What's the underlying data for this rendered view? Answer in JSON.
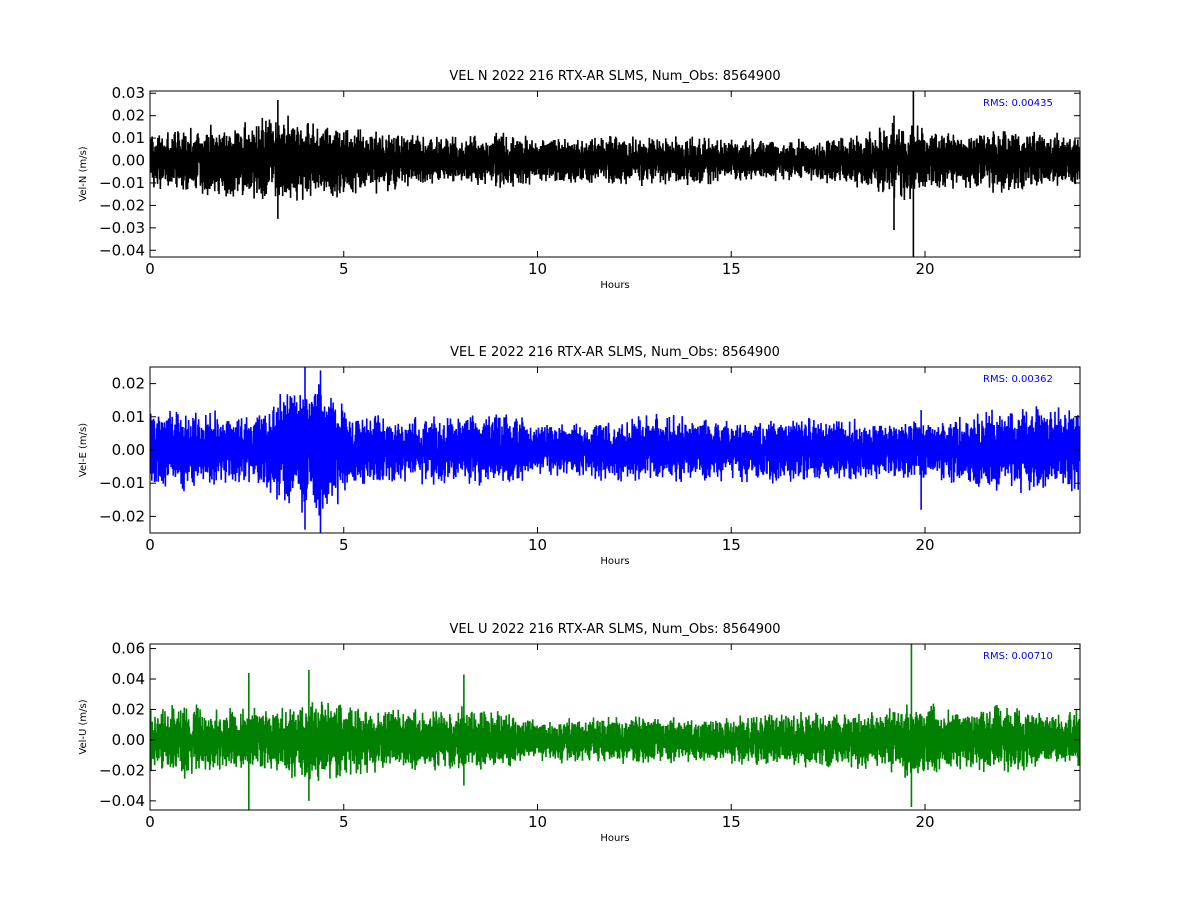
{
  "chart_data": [
    {
      "type": "line",
      "title": "VEL N 2022 216 RTX-AR  SLMS, Num_Obs: 8564900",
      "xlabel": "Hours",
      "ylabel": "Vel-N (m/s)",
      "xlim": [
        0,
        24
      ],
      "ylim": [
        -0.043,
        0.031
      ],
      "xticks": [
        0,
        5,
        10,
        15,
        20
      ],
      "xtick_labels": [
        "0",
        "5",
        "10",
        "15",
        "20"
      ],
      "yticks": [
        -0.04,
        -0.03,
        -0.02,
        -0.01,
        0.0,
        0.01,
        0.02,
        0.03
      ],
      "ytick_labels": [
        "−0.04",
        "−0.03",
        "−0.02",
        "−0.01",
        "0.00",
        "0.01",
        "0.02",
        "0.03"
      ],
      "annotation": "RMS:  0.00435",
      "annotation_color": "#0000ff",
      "grid": false,
      "series": [
        {
          "color": "#000000",
          "rms": 0.00435,
          "envelope": [
            {
              "x": 0,
              "amp": 0.013
            },
            {
              "x": 1,
              "amp": 0.016
            },
            {
              "x": 2,
              "amp": 0.018
            },
            {
              "x": 3,
              "amp": 0.02
            },
            {
              "x": 3.5,
              "amp": 0.021
            },
            {
              "x": 4,
              "amp": 0.019
            },
            {
              "x": 5,
              "amp": 0.017
            },
            {
              "x": 6,
              "amp": 0.015
            },
            {
              "x": 7,
              "amp": 0.012
            },
            {
              "x": 8,
              "amp": 0.012
            },
            {
              "x": 9,
              "amp": 0.013
            },
            {
              "x": 10,
              "amp": 0.011
            },
            {
              "x": 11,
              "amp": 0.011
            },
            {
              "x": 12,
              "amp": 0.012
            },
            {
              "x": 13,
              "amp": 0.012
            },
            {
              "x": 14,
              "amp": 0.012
            },
            {
              "x": 15,
              "amp": 0.011
            },
            {
              "x": 16,
              "amp": 0.01
            },
            {
              "x": 17,
              "amp": 0.01
            },
            {
              "x": 18,
              "amp": 0.012
            },
            {
              "x": 19,
              "amp": 0.018
            },
            {
              "x": 19.5,
              "amp": 0.02
            },
            {
              "x": 20,
              "amp": 0.014
            },
            {
              "x": 21,
              "amp": 0.013
            },
            {
              "x": 22,
              "amp": 0.016
            },
            {
              "x": 23,
              "amp": 0.013
            },
            {
              "x": 24,
              "amp": 0.012
            }
          ],
          "spikes": [
            {
              "x": 19.7,
              "y_max": 0.031,
              "y_min": -0.043
            },
            {
              "x": 19.2,
              "y_max": 0.02,
              "y_min": -0.031
            },
            {
              "x": 3.3,
              "y_max": 0.027,
              "y_min": -0.026
            }
          ]
        }
      ]
    },
    {
      "type": "line",
      "title": "VEL E 2022 216 RTX-AR  SLMS, Num_Obs: 8564900",
      "xlabel": "Hours",
      "ylabel": "Vel-E (m/s)",
      "xlim": [
        0,
        24
      ],
      "ylim": [
        -0.025,
        0.025
      ],
      "xticks": [
        0,
        5,
        10,
        15,
        20
      ],
      "xtick_labels": [
        "0",
        "5",
        "10",
        "15",
        "20"
      ],
      "yticks": [
        -0.02,
        -0.01,
        0.0,
        0.01,
        0.02
      ],
      "ytick_labels": [
        "−0.02",
        "−0.01",
        "0.00",
        "0.01",
        "0.02"
      ],
      "annotation": "RMS:  0.00362",
      "annotation_color": "#0000ff",
      "grid": false,
      "series": [
        {
          "color": "#0000ff",
          "rms": 0.00362,
          "envelope": [
            {
              "x": 0,
              "amp": 0.014
            },
            {
              "x": 1,
              "amp": 0.013
            },
            {
              "x": 2,
              "amp": 0.012
            },
            {
              "x": 2.7,
              "amp": 0.011
            },
            {
              "x": 3.3,
              "amp": 0.017
            },
            {
              "x": 4,
              "amp": 0.021
            },
            {
              "x": 4.6,
              "amp": 0.022
            },
            {
              "x": 5.2,
              "amp": 0.012
            },
            {
              "x": 6,
              "amp": 0.011
            },
            {
              "x": 7,
              "amp": 0.011
            },
            {
              "x": 8,
              "amp": 0.012
            },
            {
              "x": 9,
              "amp": 0.012
            },
            {
              "x": 10,
              "amp": 0.009
            },
            {
              "x": 11,
              "amp": 0.009
            },
            {
              "x": 12,
              "amp": 0.01
            },
            {
              "x": 13,
              "amp": 0.011
            },
            {
              "x": 14,
              "amp": 0.011
            },
            {
              "x": 15,
              "amp": 0.01
            },
            {
              "x": 16,
              "amp": 0.011
            },
            {
              "x": 17,
              "amp": 0.01
            },
            {
              "x": 18,
              "amp": 0.01
            },
            {
              "x": 19,
              "amp": 0.009
            },
            {
              "x": 20,
              "amp": 0.009
            },
            {
              "x": 21,
              "amp": 0.011
            },
            {
              "x": 22,
              "amp": 0.013
            },
            {
              "x": 23,
              "amp": 0.014
            },
            {
              "x": 24,
              "amp": 0.013
            }
          ],
          "spikes": [
            {
              "x": 4.0,
              "y_max": 0.025,
              "y_min": -0.024
            },
            {
              "x": 4.4,
              "y_max": 0.024,
              "y_min": -0.025
            },
            {
              "x": 19.9,
              "y_max": 0.012,
              "y_min": -0.018
            }
          ]
        }
      ]
    },
    {
      "type": "line",
      "title": "VEL U 2022 216 RTX-AR  SLMS, Num_Obs: 8564900",
      "xlabel": "Hours",
      "ylabel": "Vel-U (m/s)",
      "xlim": [
        0,
        24
      ],
      "ylim": [
        -0.046,
        0.063
      ],
      "xticks": [
        0,
        5,
        10,
        15,
        20
      ],
      "xtick_labels": [
        "0",
        "5",
        "10",
        "15",
        "20"
      ],
      "yticks": [
        -0.04,
        -0.02,
        0.0,
        0.02,
        0.04,
        0.06
      ],
      "ytick_labels": [
        "−0.04",
        "−0.02",
        "0.00",
        "0.02",
        "0.04",
        "0.06"
      ],
      "annotation": "RMS:  0.00710",
      "annotation_color": "#0000ff",
      "grid": false,
      "series": [
        {
          "color": "#008000",
          "rms": 0.0071,
          "envelope": [
            {
              "x": 0,
              "amp": 0.022
            },
            {
              "x": 1,
              "amp": 0.026
            },
            {
              "x": 2,
              "amp": 0.022
            },
            {
              "x": 3,
              "amp": 0.023
            },
            {
              "x": 4,
              "amp": 0.028
            },
            {
              "x": 5,
              "amp": 0.027
            },
            {
              "x": 6,
              "amp": 0.022
            },
            {
              "x": 7,
              "amp": 0.021
            },
            {
              "x": 8,
              "amp": 0.023
            },
            {
              "x": 9,
              "amp": 0.02
            },
            {
              "x": 10,
              "amp": 0.016
            },
            {
              "x": 11,
              "amp": 0.016
            },
            {
              "x": 12,
              "amp": 0.017
            },
            {
              "x": 13,
              "amp": 0.017
            },
            {
              "x": 14,
              "amp": 0.016
            },
            {
              "x": 15,
              "amp": 0.016
            },
            {
              "x": 16,
              "amp": 0.019
            },
            {
              "x": 17,
              "amp": 0.02
            },
            {
              "x": 18,
              "amp": 0.02
            },
            {
              "x": 19,
              "amp": 0.021
            },
            {
              "x": 19.7,
              "amp": 0.028
            },
            {
              "x": 20.5,
              "amp": 0.024
            },
            {
              "x": 21,
              "amp": 0.02
            },
            {
              "x": 22,
              "amp": 0.026
            },
            {
              "x": 23,
              "amp": 0.019
            },
            {
              "x": 24,
              "amp": 0.02
            }
          ],
          "spikes": [
            {
              "x": 19.65,
              "y_max": 0.063,
              "y_min": -0.044
            },
            {
              "x": 2.55,
              "y_max": 0.044,
              "y_min": -0.046
            },
            {
              "x": 4.1,
              "y_max": 0.046,
              "y_min": -0.04
            },
            {
              "x": 8.1,
              "y_max": 0.043,
              "y_min": -0.03
            }
          ]
        }
      ]
    }
  ]
}
